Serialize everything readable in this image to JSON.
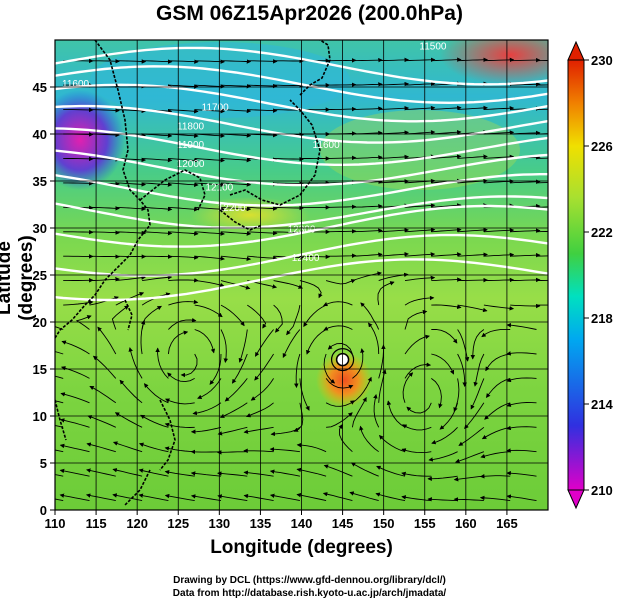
{
  "title": "GSM 06Z15Apr2026 (200.0hPa)",
  "credits": {
    "line1": "Drawing by DCL (https://www.gfd-dennou.org/library/dcl/)",
    "line2": "Data from http://database.rish.kyoto-u.ac.jp/arch/jmadata/"
  },
  "chart_data": {
    "type": "heatmap",
    "title": "GSM 06Z15Apr2026 (200.0hPa)",
    "xlabel": "Longitude (degrees)",
    "ylabel": "Latitude  (degrees)",
    "xlim": [
      110,
      170
    ],
    "ylim": [
      0,
      50
    ],
    "x_ticks": [
      110,
      115,
      120,
      125,
      130,
      135,
      140,
      145,
      150,
      155,
      160,
      165
    ],
    "y_ticks": [
      0,
      5,
      10,
      15,
      20,
      25,
      30,
      35,
      40,
      45
    ],
    "colorbar": {
      "min": 210,
      "max": 230,
      "ticks": [
        230,
        226,
        222,
        218,
        214,
        210
      ],
      "colors": [
        "#e000c8",
        "#3030e0",
        "#00a8f0",
        "#00e0c0",
        "#40d040",
        "#a8e030",
        "#f0e000",
        "#f08000",
        "#e02000"
      ]
    },
    "contours": [
      {
        "label": "11600",
        "lon": 143,
        "lat": 38.5
      },
      {
        "label": "11600",
        "lon": 112.5,
        "lat": 45.0
      },
      {
        "label": "11700",
        "lon": 129.5,
        "lat": 42.5
      },
      {
        "label": "11800",
        "lon": 126.5,
        "lat": 40.5
      },
      {
        "label": "11900",
        "lon": 126.5,
        "lat": 38.5
      },
      {
        "label": "12000",
        "lon": 126.5,
        "lat": 36.5
      },
      {
        "label": "12100",
        "lon": 130.0,
        "lat": 34.0
      },
      {
        "label": "12200",
        "lon": 131.5,
        "lat": 31.8
      },
      {
        "label": "12300",
        "lon": 140.0,
        "lat": 29.5
      },
      {
        "label": "12400",
        "lon": 140.5,
        "lat": 26.5
      },
      {
        "label": "11500",
        "lon": 156.0,
        "lat": 49.0
      }
    ],
    "vortices": [
      {
        "name": "typhoon",
        "lon": 145.0,
        "lat": 16.0
      },
      {
        "name": "anticyclone-west",
        "lon": 126.0,
        "lat": 16.0
      },
      {
        "name": "anticyclone-east",
        "lon": 154.5,
        "lat": 12.0
      }
    ],
    "grid": true
  }
}
